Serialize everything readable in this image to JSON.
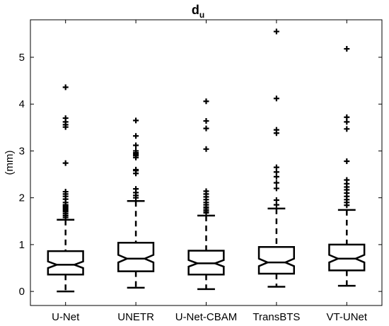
{
  "chart_data": {
    "type": "box",
    "title": "d",
    "title_subscript": "u",
    "xlabel": "",
    "ylabel": "(mm)",
    "ylim": [
      -0.3,
      5.8
    ],
    "yticks": [
      0,
      1,
      2,
      3,
      4,
      5
    ],
    "ytick_labels": [
      "0",
      "1",
      "2",
      "3",
      "4",
      "5"
    ],
    "grid": false,
    "notched": true,
    "categories": [
      "U-Net",
      "UNETR",
      "U-Net-CBAM",
      "TransBTS",
      "VT-UNet"
    ],
    "boxes": [
      {
        "name": "U-Net",
        "whisker_low": 0.0,
        "q1": 0.36,
        "median": 0.57,
        "q3": 0.86,
        "whisker_high": 1.53,
        "notch_low": 0.5,
        "notch_high": 0.64,
        "outliers": [
          1.58,
          1.62,
          1.66,
          1.7,
          1.73,
          1.76,
          1.79,
          1.82,
          1.85,
          1.9,
          1.97,
          2.03,
          2.08,
          2.13,
          2.74,
          3.51,
          3.56,
          3.62,
          3.7,
          4.36
        ]
      },
      {
        "name": "UNETR",
        "whisker_low": 0.08,
        "q1": 0.43,
        "median": 0.7,
        "q3": 1.04,
        "whisker_high": 1.93,
        "notch_low": 0.62,
        "notch_high": 0.78,
        "outliers": [
          2.0,
          2.05,
          2.11,
          2.19,
          2.52,
          2.58,
          2.6,
          2.86,
          2.9,
          2.93,
          2.96,
          3.0,
          3.12,
          3.32,
          3.65
        ]
      },
      {
        "name": "U-Net-CBAM",
        "whisker_low": 0.05,
        "q1": 0.36,
        "median": 0.6,
        "q3": 0.87,
        "whisker_high": 1.62,
        "notch_low": 0.53,
        "notch_high": 0.67,
        "outliers": [
          1.68,
          1.72,
          1.76,
          1.8,
          1.85,
          1.9,
          1.96,
          2.02,
          2.08,
          2.14,
          3.04,
          3.48,
          3.64,
          4.06
        ]
      },
      {
        "name": "TransBTS",
        "whisker_low": 0.1,
        "q1": 0.38,
        "median": 0.62,
        "q3": 0.95,
        "whisker_high": 1.77,
        "notch_low": 0.54,
        "notch_high": 0.7,
        "outliers": [
          1.85,
          1.95,
          2.2,
          2.32,
          2.45,
          2.55,
          2.65,
          3.38,
          3.45,
          4.12,
          5.55
        ]
      },
      {
        "name": "VT-UNet",
        "whisker_low": 0.12,
        "q1": 0.45,
        "median": 0.7,
        "q3": 1.0,
        "whisker_high": 1.74,
        "notch_low": 0.62,
        "notch_high": 0.78,
        "outliers": [
          1.84,
          1.9,
          1.96,
          2.03,
          2.1,
          2.17,
          2.23,
          2.3,
          2.38,
          2.78,
          3.47,
          3.62,
          3.72,
          5.18
        ]
      }
    ]
  }
}
